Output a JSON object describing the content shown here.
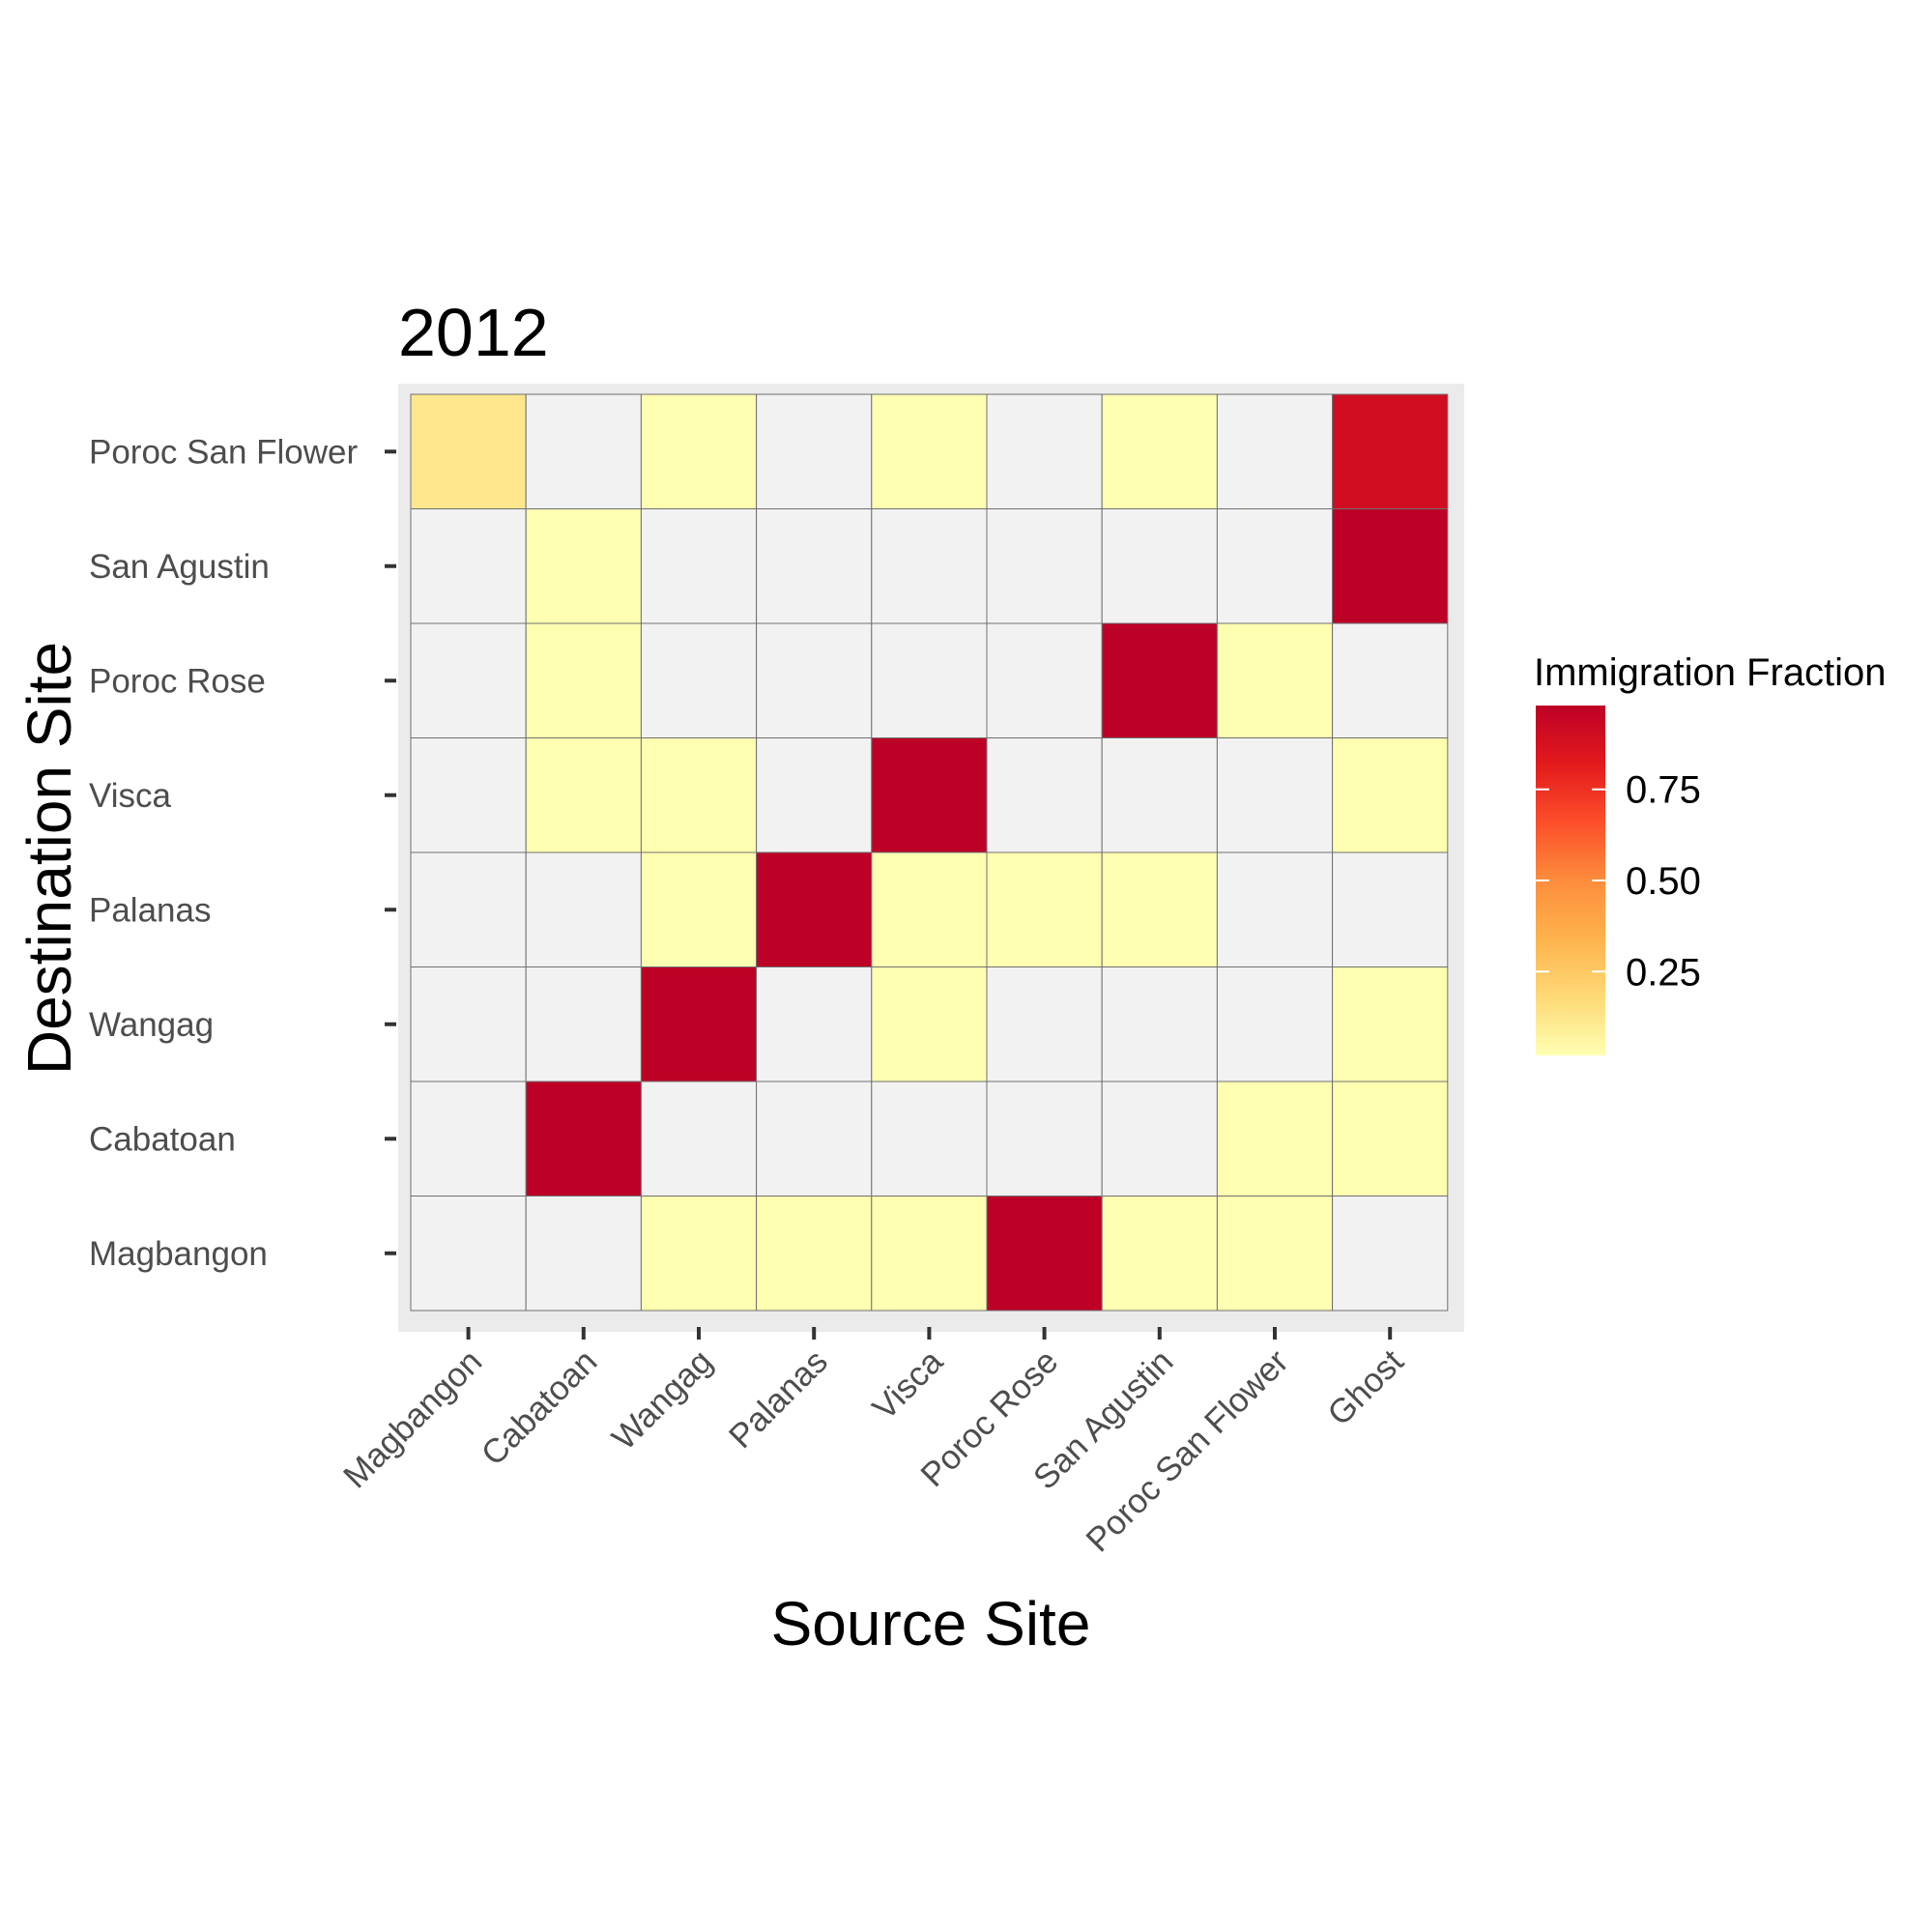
{
  "chart_data": {
    "type": "heatmap",
    "title": "2012",
    "xlabel": "Source Site",
    "ylabel": "Destination Site",
    "x_categories": [
      "Magbangon",
      "Cabatoan",
      "Wangag",
      "Palanas",
      "Visca",
      "Poroc Rose",
      "San Agustin",
      "Poroc San Flower",
      "Ghost"
    ],
    "y_categories": [
      "Poroc San Flower",
      "San Agustin",
      "Poroc Rose",
      "Visca",
      "Palanas",
      "Wangag",
      "Cabatoan",
      "Magbangon"
    ],
    "values": [
      [
        0.12,
        null,
        0.02,
        null,
        0.02,
        null,
        0.02,
        null,
        0.9
      ],
      [
        null,
        0.02,
        null,
        null,
        null,
        null,
        null,
        null,
        0.98
      ],
      [
        null,
        0.02,
        null,
        null,
        null,
        null,
        0.98,
        0.02,
        null
      ],
      [
        null,
        0.02,
        0.02,
        null,
        0.98,
        null,
        null,
        null,
        0.02
      ],
      [
        null,
        null,
        0.02,
        0.98,
        0.02,
        0.02,
        0.02,
        null,
        null
      ],
      [
        null,
        null,
        0.98,
        null,
        0.02,
        null,
        null,
        null,
        0.02
      ],
      [
        null,
        0.98,
        null,
        null,
        null,
        null,
        null,
        0.02,
        0.02
      ],
      [
        null,
        null,
        0.02,
        0.02,
        0.02,
        0.98,
        0.02,
        0.02,
        null
      ]
    ],
    "legend": {
      "title": "Immigration Fraction",
      "ticks": [
        0.25,
        0.5,
        0.75
      ],
      "tick_labels": [
        "0.25",
        "0.50",
        "0.75"
      ],
      "range": [
        0.02,
        0.98
      ],
      "placement": "right"
    },
    "colors": {
      "scale": [
        "#ffffb2",
        "#fed976",
        "#feb24c",
        "#fd8d3c",
        "#fc4e2a",
        "#e31a1c",
        "#bd0026"
      ],
      "na": "#f2f2f2",
      "panel": "#ebebeb",
      "cell_border": "#707070"
    }
  }
}
